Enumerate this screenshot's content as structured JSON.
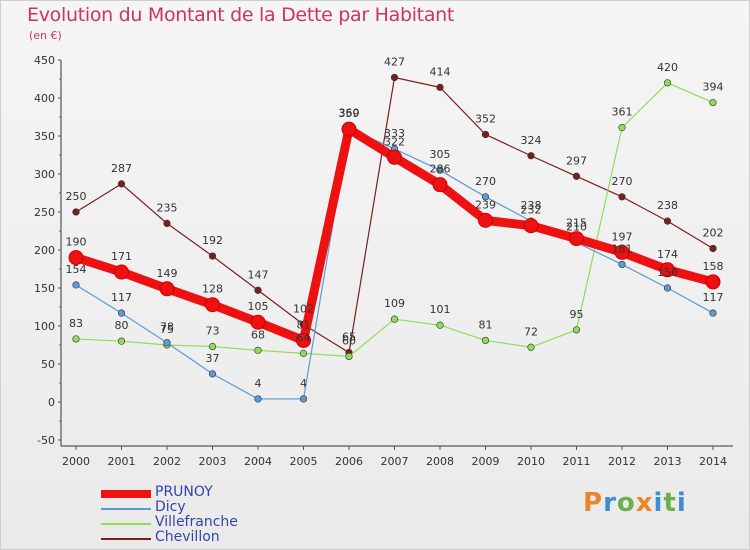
{
  "header": {
    "title": "Evolution du Montant de la Dette par Habitant",
    "subtitle": "(en €)"
  },
  "logo": {
    "text": "Proxiti",
    "letters": [
      {
        "ch": "P",
        "color": "#e8872a"
      },
      {
        "ch": "r",
        "color": "#3b8fd0"
      },
      {
        "ch": "o",
        "color": "#6ab04c"
      },
      {
        "ch": "x",
        "color": "#e8872a"
      },
      {
        "ch": "i",
        "color": "#3b8fd0"
      },
      {
        "ch": "t",
        "color": "#6ab04c"
      },
      {
        "ch": "i",
        "color": "#3b8fd0"
      }
    ]
  },
  "chart_data": {
    "type": "line",
    "title": "Evolution du Montant de la Dette par Habitant",
    "subtitle": "(en €)",
    "xlabel": "",
    "ylabel": "",
    "x": [
      2000,
      2001,
      2002,
      2003,
      2004,
      2005,
      2006,
      2007,
      2008,
      2009,
      2010,
      2011,
      2012,
      2013,
      2014
    ],
    "ylim": [
      -50,
      450
    ],
    "yticks": [
      -50,
      0,
      50,
      100,
      150,
      200,
      250,
      300,
      350,
      400,
      450
    ],
    "grid": false,
    "legend_position": "bottom-left",
    "series": [
      {
        "name": "Chevillon",
        "color": "#7a1f1f",
        "values": [
          250,
          287,
          235,
          192,
          147,
          102,
          65,
          427,
          414,
          352,
          324,
          297,
          270,
          238,
          202
        ]
      },
      {
        "name": "Villefranche",
        "color": "#8fdc5a",
        "values": [
          83,
          80,
          75,
          73,
          68,
          64,
          60,
          109,
          101,
          81,
          72,
          95,
          361,
          420,
          394
        ]
      },
      {
        "name": "Dicy",
        "color": "#5a9bd5",
        "values": [
          154,
          117,
          78,
          37,
          4,
          4,
          360,
          333,
          305,
          270,
          238,
          210,
          181,
          150,
          117
        ]
      },
      {
        "name": "PRUNOY",
        "color": "#ee1111",
        "values": [
          190,
          171,
          149,
          128,
          105,
          81,
          359,
          322,
          286,
          239,
          232,
          215,
          197,
          174,
          158
        ]
      }
    ]
  }
}
